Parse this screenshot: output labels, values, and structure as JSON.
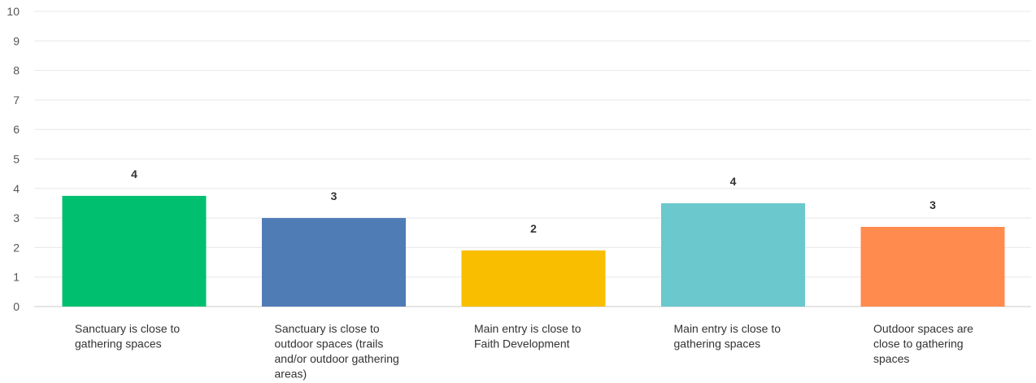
{
  "chart_data": {
    "type": "bar",
    "categories": [
      [
        "Sanctuary is close to",
        "gathering spaces"
      ],
      [
        "Sanctuary is close to",
        "outdoor spaces (trails",
        "and/or outdoor gathering",
        "areas)"
      ],
      [
        "Main entry is close to",
        "Faith Development"
      ],
      [
        "Main entry is close to",
        "gathering spaces"
      ],
      [
        "Outdoor spaces are",
        "close to gathering",
        "spaces"
      ]
    ],
    "values": [
      3.75,
      3.0,
      1.9,
      3.5,
      2.7
    ],
    "data_labels": [
      "4",
      "3",
      "2",
      "4",
      "3"
    ],
    "colors": [
      "#00bf6f",
      "#507cb6",
      "#f9be00",
      "#6bc8cd",
      "#ff8b4f"
    ],
    "yticks": [
      "0",
      "1",
      "2",
      "3",
      "4",
      "5",
      "6",
      "7",
      "8",
      "9",
      "10"
    ],
    "ylim": [
      0,
      10
    ],
    "grid": true,
    "title": "",
    "xlabel": "",
    "ylabel": ""
  }
}
